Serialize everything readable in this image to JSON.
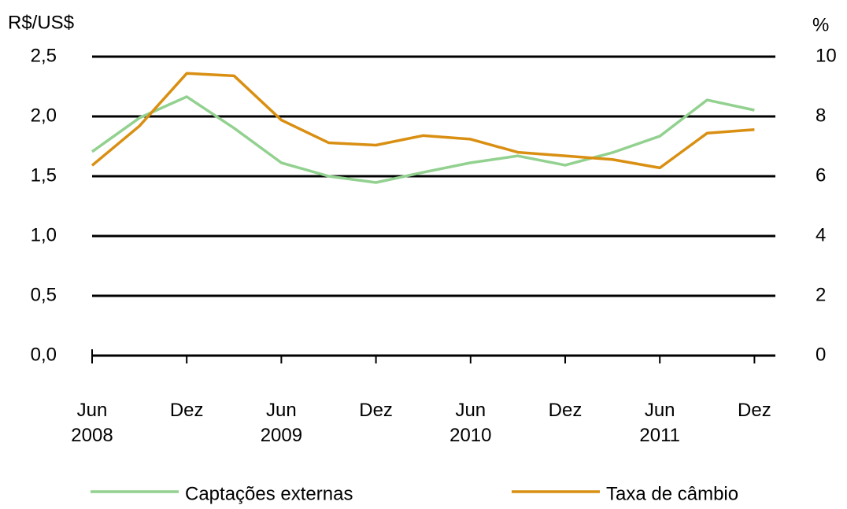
{
  "chart_data": {
    "type": "line",
    "y_label": "R$/US$",
    "y2_label": "%",
    "categories": [
      "Jun 2008",
      null,
      "Dez",
      null,
      "Jun 2009",
      null,
      "Dez",
      null,
      "Jun 2010",
      null,
      "Dez",
      null,
      "Jun 2011",
      null,
      "Dez"
    ],
    "series": [
      {
        "name": "Captações externas",
        "color": "#92d18f",
        "axis": "y2",
        "values": [
          6.82,
          7.95,
          8.66,
          7.61,
          6.45,
          6.0,
          5.79,
          6.13,
          6.45,
          6.68,
          6.37,
          6.79,
          7.34,
          8.55,
          8.21
        ]
      },
      {
        "name": "Taxa de câmbio",
        "color": "#d98f12",
        "values": [
          1.59,
          1.92,
          2.36,
          2.34,
          1.97,
          1.78,
          1.76,
          1.84,
          1.81,
          1.7,
          1.67,
          1.64,
          1.57,
          1.86,
          1.89
        ]
      }
    ],
    "ylim": [
      0,
      2.5
    ],
    "yticks": [
      {
        "value": 0,
        "label": "0,0"
      },
      {
        "value": 0.5,
        "label": "0,5"
      },
      {
        "value": 1,
        "label": "1,0"
      },
      {
        "value": 1.5,
        "label": "1,5"
      },
      {
        "value": 2,
        "label": "2,0"
      },
      {
        "value": 2.5,
        "label": "2,5"
      }
    ],
    "y2lim": [
      0,
      10
    ],
    "y2ticks": [
      0,
      2,
      4,
      6,
      8,
      10
    ],
    "grid": true
  }
}
